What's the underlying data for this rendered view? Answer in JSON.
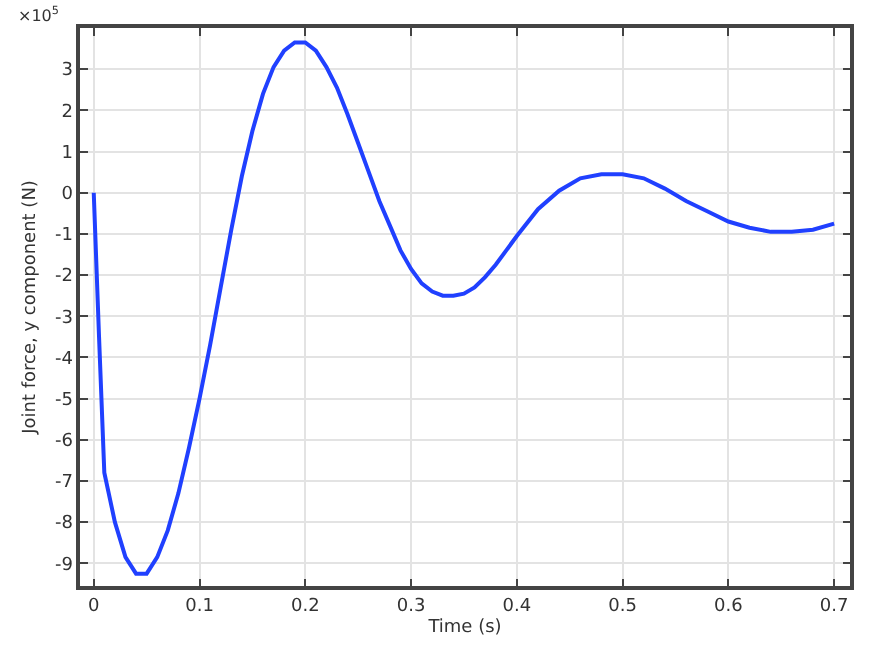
{
  "chart_data": {
    "type": "line",
    "xlabel": "Time (s)",
    "ylabel": "Joint force, y component (N)",
    "annotations": [
      "×10$^{5}$"
    ],
    "x": [
      0,
      0.005,
      0.01,
      0.02,
      0.03,
      0.04,
      0.05,
      0.06,
      0.07,
      0.08,
      0.09,
      0.1,
      0.11,
      0.12,
      0.13,
      0.14,
      0.15,
      0.16,
      0.17,
      0.18,
      0.19,
      0.2,
      0.21,
      0.22,
      0.23,
      0.24,
      0.25,
      0.26,
      0.27,
      0.28,
      0.29,
      0.3,
      0.31,
      0.32,
      0.33,
      0.34,
      0.35,
      0.36,
      0.37,
      0.38,
      0.39,
      0.4,
      0.42,
      0.44,
      0.46,
      0.48,
      0.5,
      0.52,
      0.54,
      0.56,
      0.58,
      0.6,
      0.62,
      0.64,
      0.66,
      0.68,
      0.7
    ],
    "series": [
      {
        "color": "#2040ff",
        "values": [
          0,
          -3.5,
          -6.8,
          -8.0,
          -8.85,
          -9.25,
          -9.25,
          -8.85,
          -8.2,
          -7.3,
          -6.2,
          -5.0,
          -3.7,
          -2.3,
          -0.9,
          0.4,
          1.5,
          2.4,
          3.05,
          3.45,
          3.65,
          3.65,
          3.45,
          3.05,
          2.55,
          1.9,
          1.2,
          0.5,
          -0.2,
          -0.8,
          -1.4,
          -1.85,
          -2.2,
          -2.4,
          -2.5,
          -2.5,
          -2.45,
          -2.3,
          -2.05,
          -1.75,
          -1.4,
          -1.05,
          -0.4,
          0.05,
          0.35,
          0.45,
          0.45,
          0.35,
          0.1,
          -0.2,
          -0.45,
          -0.7,
          -0.85,
          -0.95,
          -0.95,
          -0.9,
          -0.75
        ]
      }
    ],
    "xlim": [
      -0.013,
      0.715
    ],
    "xticks": [
      0,
      0.1,
      0.2,
      0.3,
      0.4,
      0.5,
      0.6,
      0.7
    ],
    "ylim": [
      -9.55,
      4.0
    ],
    "yticks": [
      -9,
      -8,
      -7,
      -6,
      -5,
      -4,
      -3,
      -2,
      -1,
      0,
      1,
      2,
      3
    ],
    "grid": true,
    "marker": "none",
    "line_style": "solid"
  }
}
